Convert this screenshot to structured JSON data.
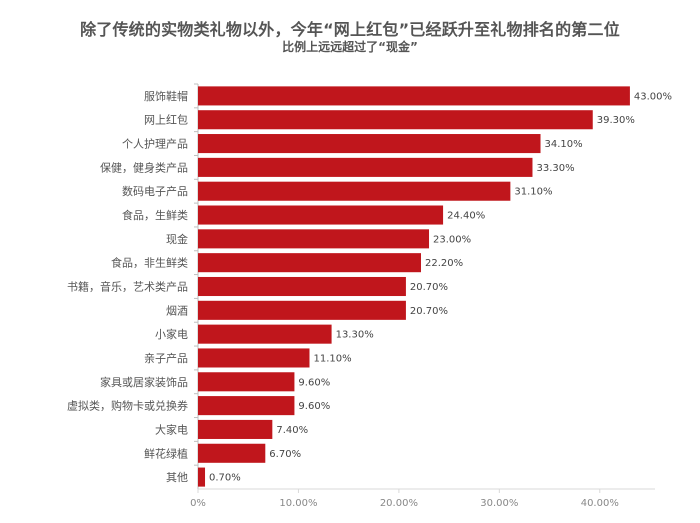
{
  "chart_data": {
    "type": "bar",
    "orientation": "horizontal",
    "title": "除了传统的实物类礼物以外，今年“网上红包”已经跃升至礼物排名的第二位",
    "subtitle": "比例上远远超过了“现金”",
    "categories": [
      "服饰鞋帽",
      "网上红包",
      "个人护理产品",
      "保健，健身类产品",
      "数码电子产品",
      "食品，生鲜类",
      "现金",
      "食品，非生鲜类",
      "书籍，音乐，艺术类产品",
      "烟酒",
      "小家电",
      "亲子产品",
      "家具或居家装饰品",
      "虚拟类，购物卡或兑换券",
      "大家电",
      "鲜花绿植",
      "其他"
    ],
    "values": [
      43.0,
      39.3,
      34.1,
      33.3,
      31.1,
      24.4,
      23.0,
      22.2,
      20.7,
      20.7,
      13.3,
      11.1,
      9.6,
      9.6,
      7.4,
      6.7,
      0.7
    ],
    "value_labels": [
      "43.00%",
      "39.30%",
      "34.10%",
      "33.30%",
      "31.10%",
      "24.40%",
      "23.00%",
      "22.20%",
      "20.70%",
      "20.70%",
      "13.30%",
      "11.10%",
      "9.60%",
      "9.60%",
      "7.40%",
      "6.70%",
      "0.70%"
    ],
    "xlim": [
      0,
      45
    ],
    "xticks": [
      0,
      10,
      20,
      30,
      40
    ],
    "xtick_labels": [
      "0%",
      "10.00%",
      "20.00%",
      "30.00%",
      "40.00%"
    ],
    "grid": false,
    "legend": "none",
    "bar_color": "#c0161c"
  }
}
